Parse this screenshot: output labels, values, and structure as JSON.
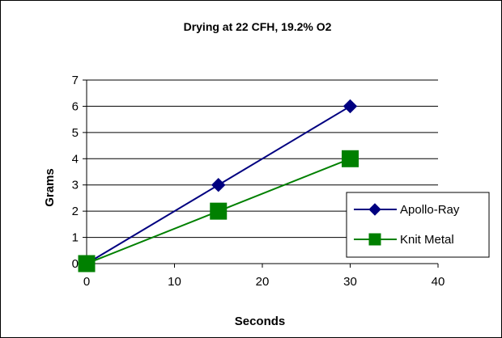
{
  "chart_data": {
    "type": "line",
    "title": "Drying at 22 CFH, 19.2% O2",
    "xlabel": "Seconds",
    "ylabel": "Grams",
    "xlim": [
      0,
      40
    ],
    "ylim": [
      0,
      7
    ],
    "x_ticks": [
      "0",
      "10",
      "20",
      "30",
      "40"
    ],
    "y_ticks": [
      "0",
      "1",
      "2",
      "3",
      "4",
      "5",
      "6",
      "7"
    ],
    "grid": "horizontal",
    "legend_position": "right",
    "series": [
      {
        "name": "Apollo-Ray",
        "color": "#000080",
        "marker": "diamond",
        "x": [
          0,
          15,
          30
        ],
        "y": [
          0,
          3,
          6
        ]
      },
      {
        "name": "Knit Metal",
        "color": "#008000",
        "marker": "square",
        "x": [
          0,
          15,
          30
        ],
        "y": [
          0,
          2,
          4
        ]
      }
    ]
  }
}
